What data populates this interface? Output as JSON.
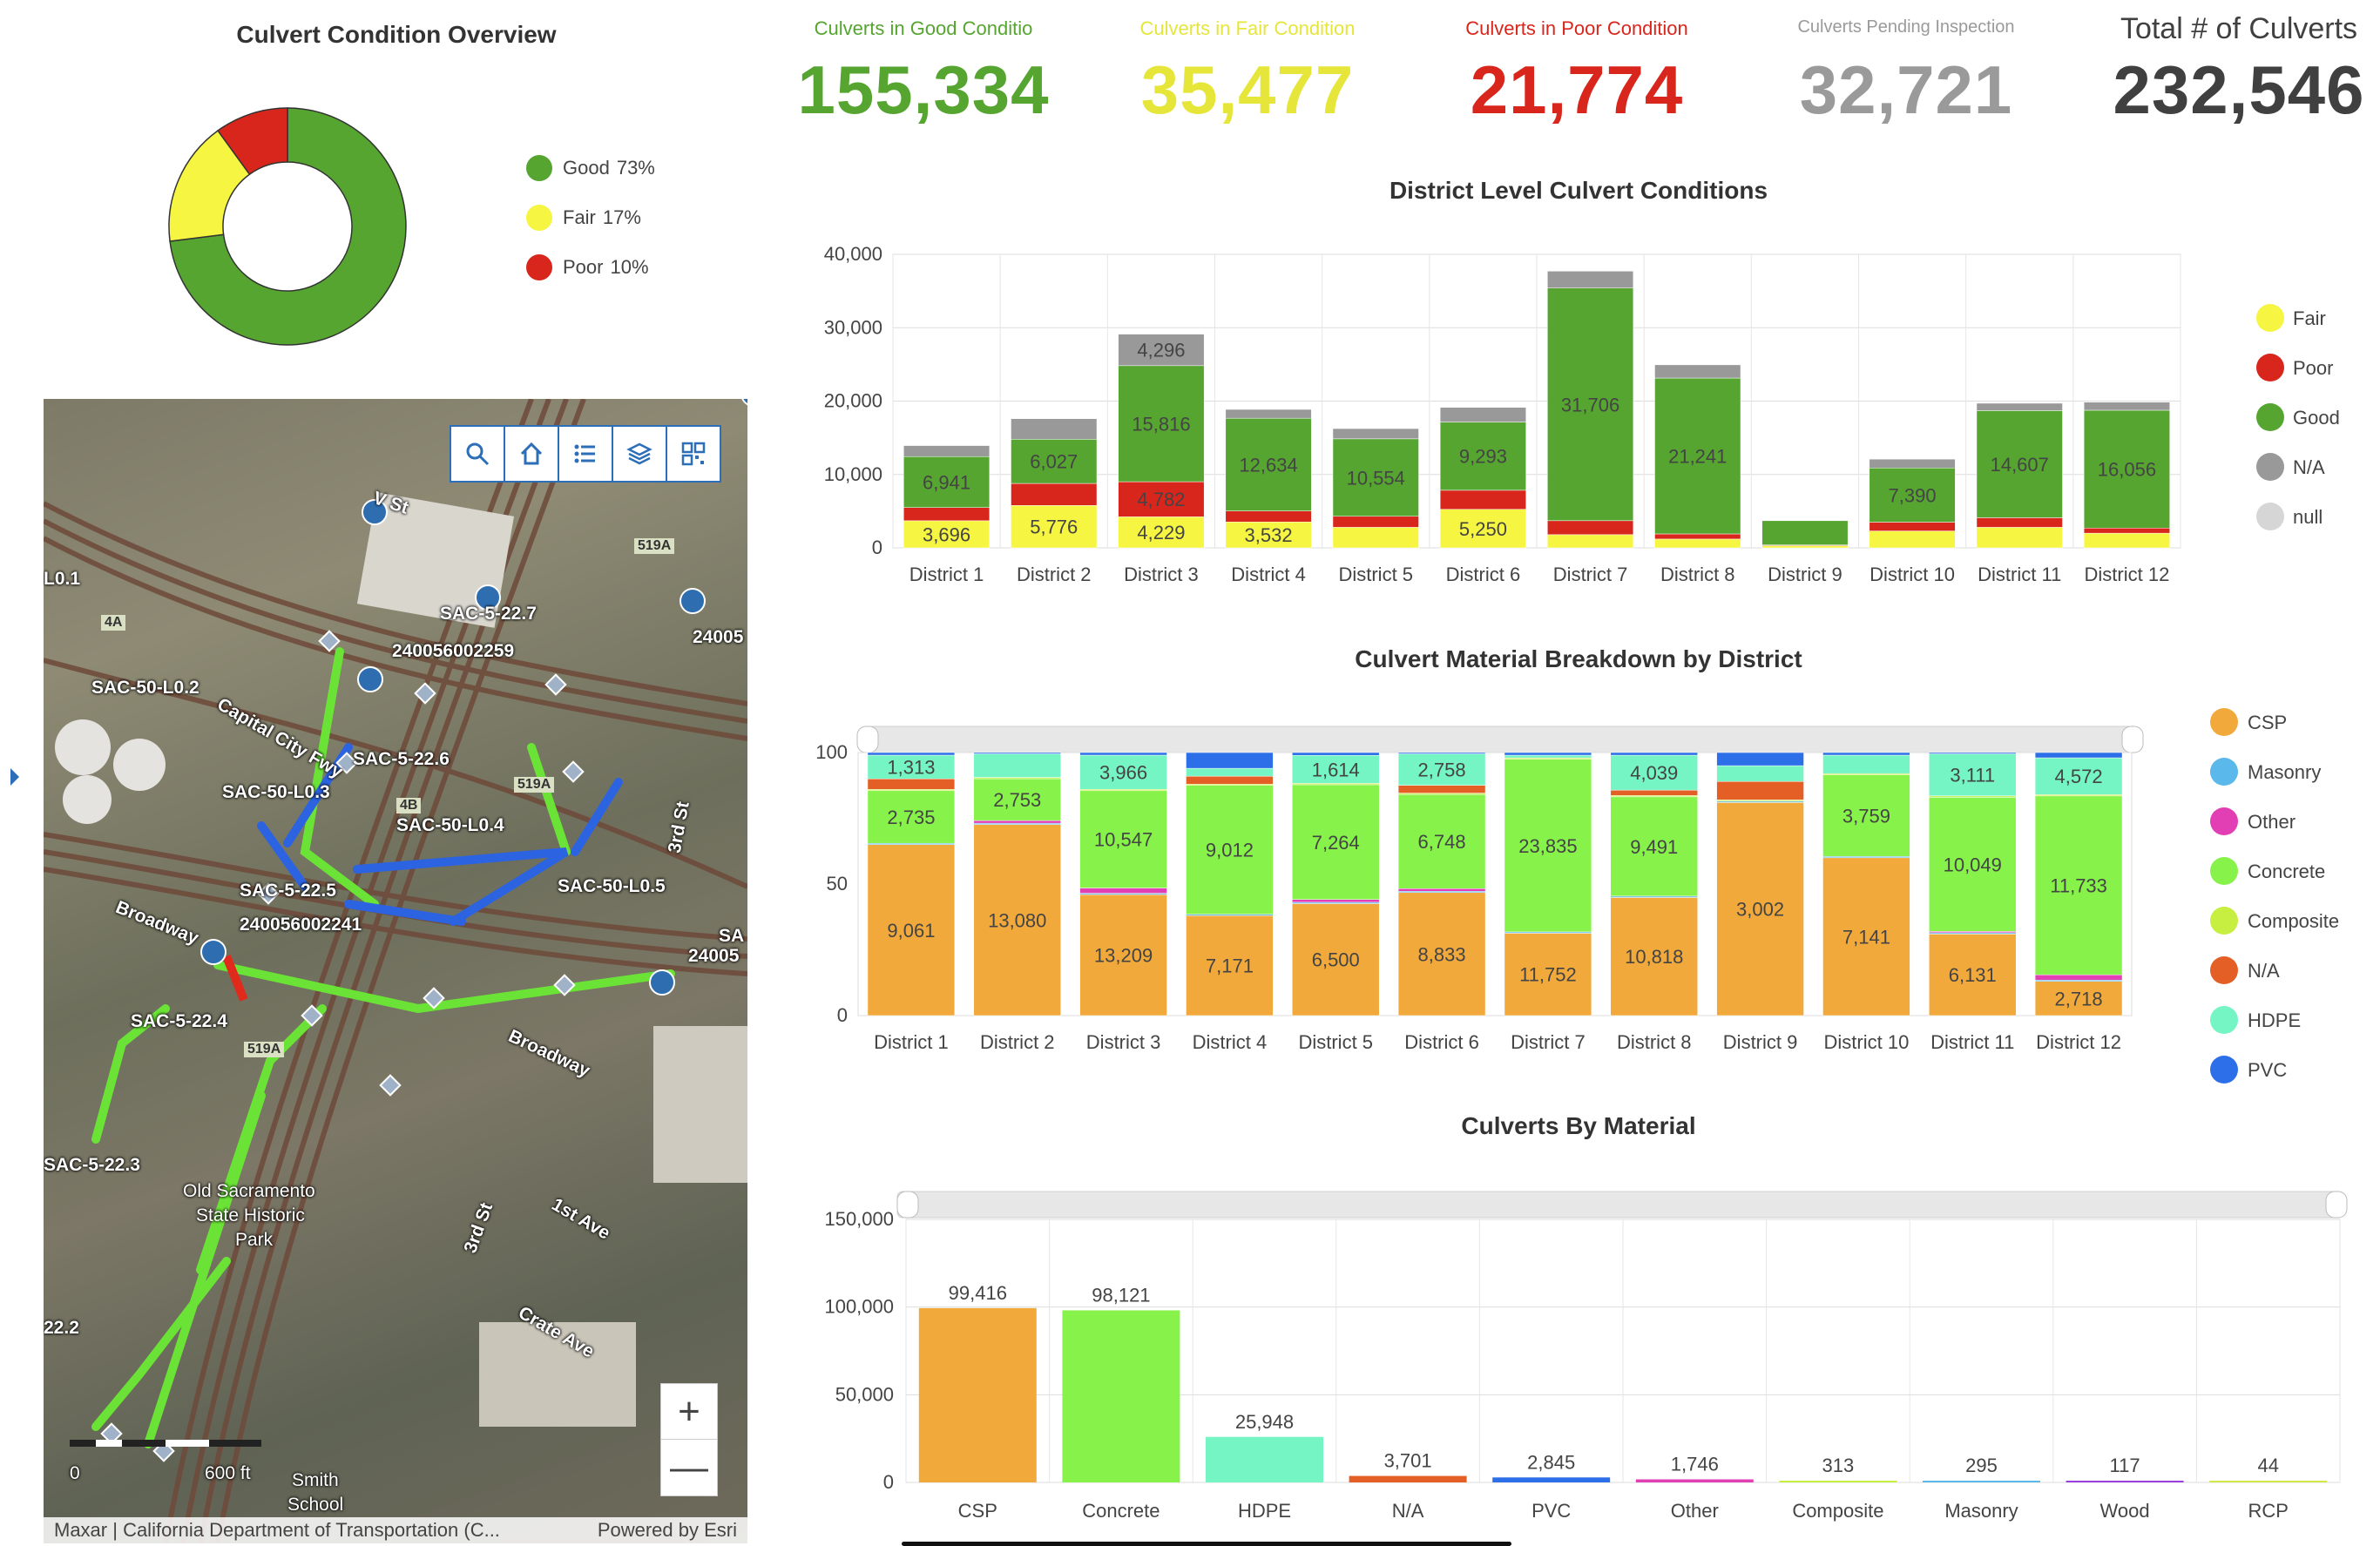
{
  "donut": {
    "title": "Culvert Condition Overview",
    "slices": [
      {
        "label": "Good",
        "pct_label": "73%",
        "value": 73,
        "color": "#55a530"
      },
      {
        "label": "Fair",
        "pct_label": "17%",
        "value": 17,
        "color": "#f5f542"
      },
      {
        "label": "Poor",
        "pct_label": "10%",
        "value": 10,
        "color": "#d9261c"
      }
    ]
  },
  "kpis": [
    {
      "label": "Culverts in Good Conditio",
      "value": "155,334",
      "color": "#55a530"
    },
    {
      "label": "Culverts in Fair Condition",
      "value": "35,477",
      "color": "#e6e63a"
    },
    {
      "label": "Culverts in Poor Condition",
      "value": "21,774",
      "color": "#d9261c"
    },
    {
      "label": "Culverts Pending Inspection",
      "value": "32,721",
      "color": "#9a9a9a"
    },
    {
      "label": "Total # of Culverts",
      "value": "232,546",
      "color": "#404040"
    }
  ],
  "map": {
    "toolbar": [
      "search-icon",
      "home-icon",
      "list-icon",
      "layers-icon",
      "qr-icon"
    ],
    "labels": [
      "V St",
      "SAC-5-22.7",
      "240056002259",
      "SAC-50-L0.2",
      "Capital City Fwy",
      "SAC-5-22.6",
      "SAC-50-L0.3",
      "SAC-50-L0.4",
      "SAC-50-L0.5",
      "SAC-5-22.5",
      "240056002241",
      "Broadway",
      "SAC-5-22.4",
      "Broadway",
      "SAC-5-22.3",
      "Old Sacramento",
      "State Historic",
      "Park",
      "3rd St",
      "1st Ave",
      "Crate Ave",
      "22.2",
      "Smith",
      "School",
      "L0.1",
      "4A",
      "519A",
      "519A",
      "4B",
      "519A",
      "3rd St",
      "24005",
      "SA",
      "24005"
    ],
    "scale_left": "0",
    "scale_right": "600 ft",
    "zoom_in": "+",
    "zoom_out": "—",
    "attribution": "Maxar | California Department of Transportation (C...",
    "powered_by": "Powered by Esri"
  },
  "chart_data": [
    {
      "type": "bar",
      "stacked": true,
      "title": "District Level Culvert Conditions",
      "categories": [
        "District 1",
        "District 2",
        "District 3",
        "District 4",
        "District 5",
        "District 6",
        "District 7",
        "District 8",
        "District 9",
        "District 10",
        "District 11",
        "District 12"
      ],
      "ylim": [
        0,
        40000
      ],
      "yticks": [
        "0",
        "10,000",
        "20,000",
        "30,000",
        "40,000"
      ],
      "grid": true,
      "legend_position": "right",
      "series": [
        {
          "name": "Fair",
          "color": "#f5f542",
          "values": [
            3696,
            5776,
            4229,
            3532,
            2800,
            5250,
            1800,
            1200,
            300,
            2300,
            2800,
            2000
          ],
          "labels": [
            "3,696",
            "5,776",
            "4,229",
            "3,532",
            "",
            "5,250",
            "",
            "",
            "",
            "",
            "",
            ""
          ]
        },
        {
          "name": "Poor",
          "color": "#d9261c",
          "values": [
            1800,
            3000,
            4782,
            1500,
            1500,
            2600,
            1900,
            700,
            100,
            1200,
            1300,
            700
          ],
          "labels": [
            "",
            "",
            "4,782",
            "",
            "",
            "",
            "",
            "",
            "",
            "",
            "",
            ""
          ]
        },
        {
          "name": "Good",
          "color": "#55a530",
          "values": [
            6941,
            6027,
            15816,
            12634,
            10554,
            9293,
            31706,
            21241,
            3300,
            7390,
            14607,
            16056
          ],
          "labels": [
            "6,941",
            "6,027",
            "15,816",
            "12,634",
            "10,554",
            "9,293",
            "31,706",
            "21,241",
            "",
            "7,390",
            "14,607",
            "16,056"
          ]
        },
        {
          "name": "N/A",
          "color": "#999999",
          "values": [
            1500,
            2800,
            4296,
            1200,
            1400,
            2000,
            2300,
            1800,
            0,
            1200,
            1000,
            1100
          ],
          "labels": [
            "",
            "",
            "4,296",
            "",
            "",
            "",
            "",
            "",
            "",
            "",
            "",
            ""
          ]
        },
        {
          "name": "null",
          "color": "#d6d6d6",
          "values": [
            0,
            0,
            0,
            0,
            0,
            0,
            0,
            0,
            0,
            0,
            0,
            0
          ],
          "labels": [
            "",
            "",
            "",
            "",
            "",
            "",
            "",
            "",
            "",
            "",
            "",
            ""
          ]
        }
      ]
    },
    {
      "type": "bar",
      "stacked": true,
      "percent": true,
      "title": "Culvert Material Breakdown by District",
      "categories": [
        "District 1",
        "District 2",
        "District 3",
        "District 4",
        "District 5",
        "District 6",
        "District 7",
        "District 8",
        "District 9",
        "District 10",
        "District 11",
        "District 12"
      ],
      "ylim": [
        0,
        100
      ],
      "yticks": [
        "0",
        "50",
        "100"
      ],
      "grid": false,
      "legend_position": "right",
      "series": [
        {
          "name": "CSP",
          "color": "#f2a93b",
          "values": [
            65,
            73,
            46,
            38,
            40,
            47,
            31,
            44,
            81,
            60,
            31,
            13
          ],
          "labels": [
            "9,061",
            "13,080",
            "13,209",
            "7,171",
            "6,500",
            "8,833",
            "11,752",
            "10,818",
            "3,002",
            "7,141",
            "6,131",
            "2,718"
          ]
        },
        {
          "name": "Masonry",
          "color": "#5ab8ea",
          "values": [
            0.5,
            0.5,
            0.5,
            0.5,
            0.5,
            0.5,
            0.5,
            0.5,
            0.5,
            0.5,
            0.5,
            0.5
          ],
          "labels": [
            "",
            "",
            "",
            "",
            "",
            "",
            "",
            "",
            "",
            "",
            "",
            ""
          ]
        },
        {
          "name": "Other",
          "color": "#e23fb4",
          "values": [
            0,
            1,
            2,
            0,
            1,
            1,
            0,
            0,
            0,
            0,
            0.5,
            2
          ],
          "labels": [
            "",
            "",
            "",
            "",
            "",
            "",
            "",
            "",
            "",
            "",
            "",
            ""
          ]
        },
        {
          "name": "Concrete",
          "color": "#86f24a",
          "values": [
            20,
            16,
            37,
            49,
            41,
            36,
            65,
            37,
            0,
            31,
            51,
            68
          ],
          "labels": [
            "2,735",
            "2,753",
            "10,547",
            "9,012",
            "7,264",
            "6,748",
            "23,835",
            "9,491",
            "",
            "3,759",
            "10,049",
            "11,733"
          ]
        },
        {
          "name": "Composite",
          "color": "#c6ef42",
          "values": [
            0.5,
            0.5,
            0.5,
            0.5,
            0.5,
            0.5,
            0.5,
            0.5,
            0.5,
            0.5,
            0.5,
            0.5
          ],
          "labels": [
            "",
            "",
            "",
            "",
            "",
            "",
            "",
            "",
            "",
            "",
            "",
            ""
          ]
        },
        {
          "name": "N/A",
          "color": "#e35f26",
          "values": [
            4,
            0,
            0,
            3,
            0,
            3,
            0,
            2,
            7,
            0,
            0,
            0
          ],
          "labels": [
            "",
            "",
            "",
            "",
            "",
            "",
            "",
            "",
            "",
            "",
            "",
            ""
          ]
        },
        {
          "name": "HDPE",
          "color": "#74f5c3",
          "values": [
            9,
            9,
            13,
            3,
            10,
            12,
            1,
            13,
            6,
            7,
            16,
            14
          ],
          "labels": [
            "1,313",
            "",
            "3,966",
            "",
            "1,614",
            "2,758",
            "",
            "4,039",
            "",
            "",
            "3,111",
            "4,572"
          ]
        },
        {
          "name": "PVC",
          "color": "#2d6fe8",
          "values": [
            1,
            0.5,
            1,
            6,
            1,
            0.5,
            1,
            1,
            5,
            1,
            0.5,
            2
          ],
          "labels": [
            "",
            "",
            "",
            "",
            "",
            "",
            "",
            "",
            "",
            "",
            "",
            ""
          ]
        }
      ]
    },
    {
      "type": "bar",
      "title": "Culverts By Material",
      "categories": [
        "CSP",
        "Concrete",
        "HDPE",
        "N/A",
        "PVC",
        "Other",
        "Composite",
        "Masonry",
        "Wood",
        "RCP"
      ],
      "values": [
        99416,
        98121,
        25948,
        3701,
        2845,
        1746,
        313,
        295,
        117,
        44
      ],
      "labels": [
        "99,416",
        "98,121",
        "25,948",
        "3,701",
        "2,845",
        "1,746",
        "313",
        "295",
        "117",
        "44"
      ],
      "colors": [
        "#f2a93b",
        "#86f24a",
        "#74f5c3",
        "#e35f26",
        "#2d6fe8",
        "#e23fb4",
        "#c6ef42",
        "#5ab8ea",
        "#9b3fe0",
        "#d4e84a"
      ],
      "ylim": [
        0,
        150000
      ],
      "yticks": [
        "0",
        "50,000",
        "100,000",
        "150,000"
      ],
      "grid": true
    }
  ]
}
